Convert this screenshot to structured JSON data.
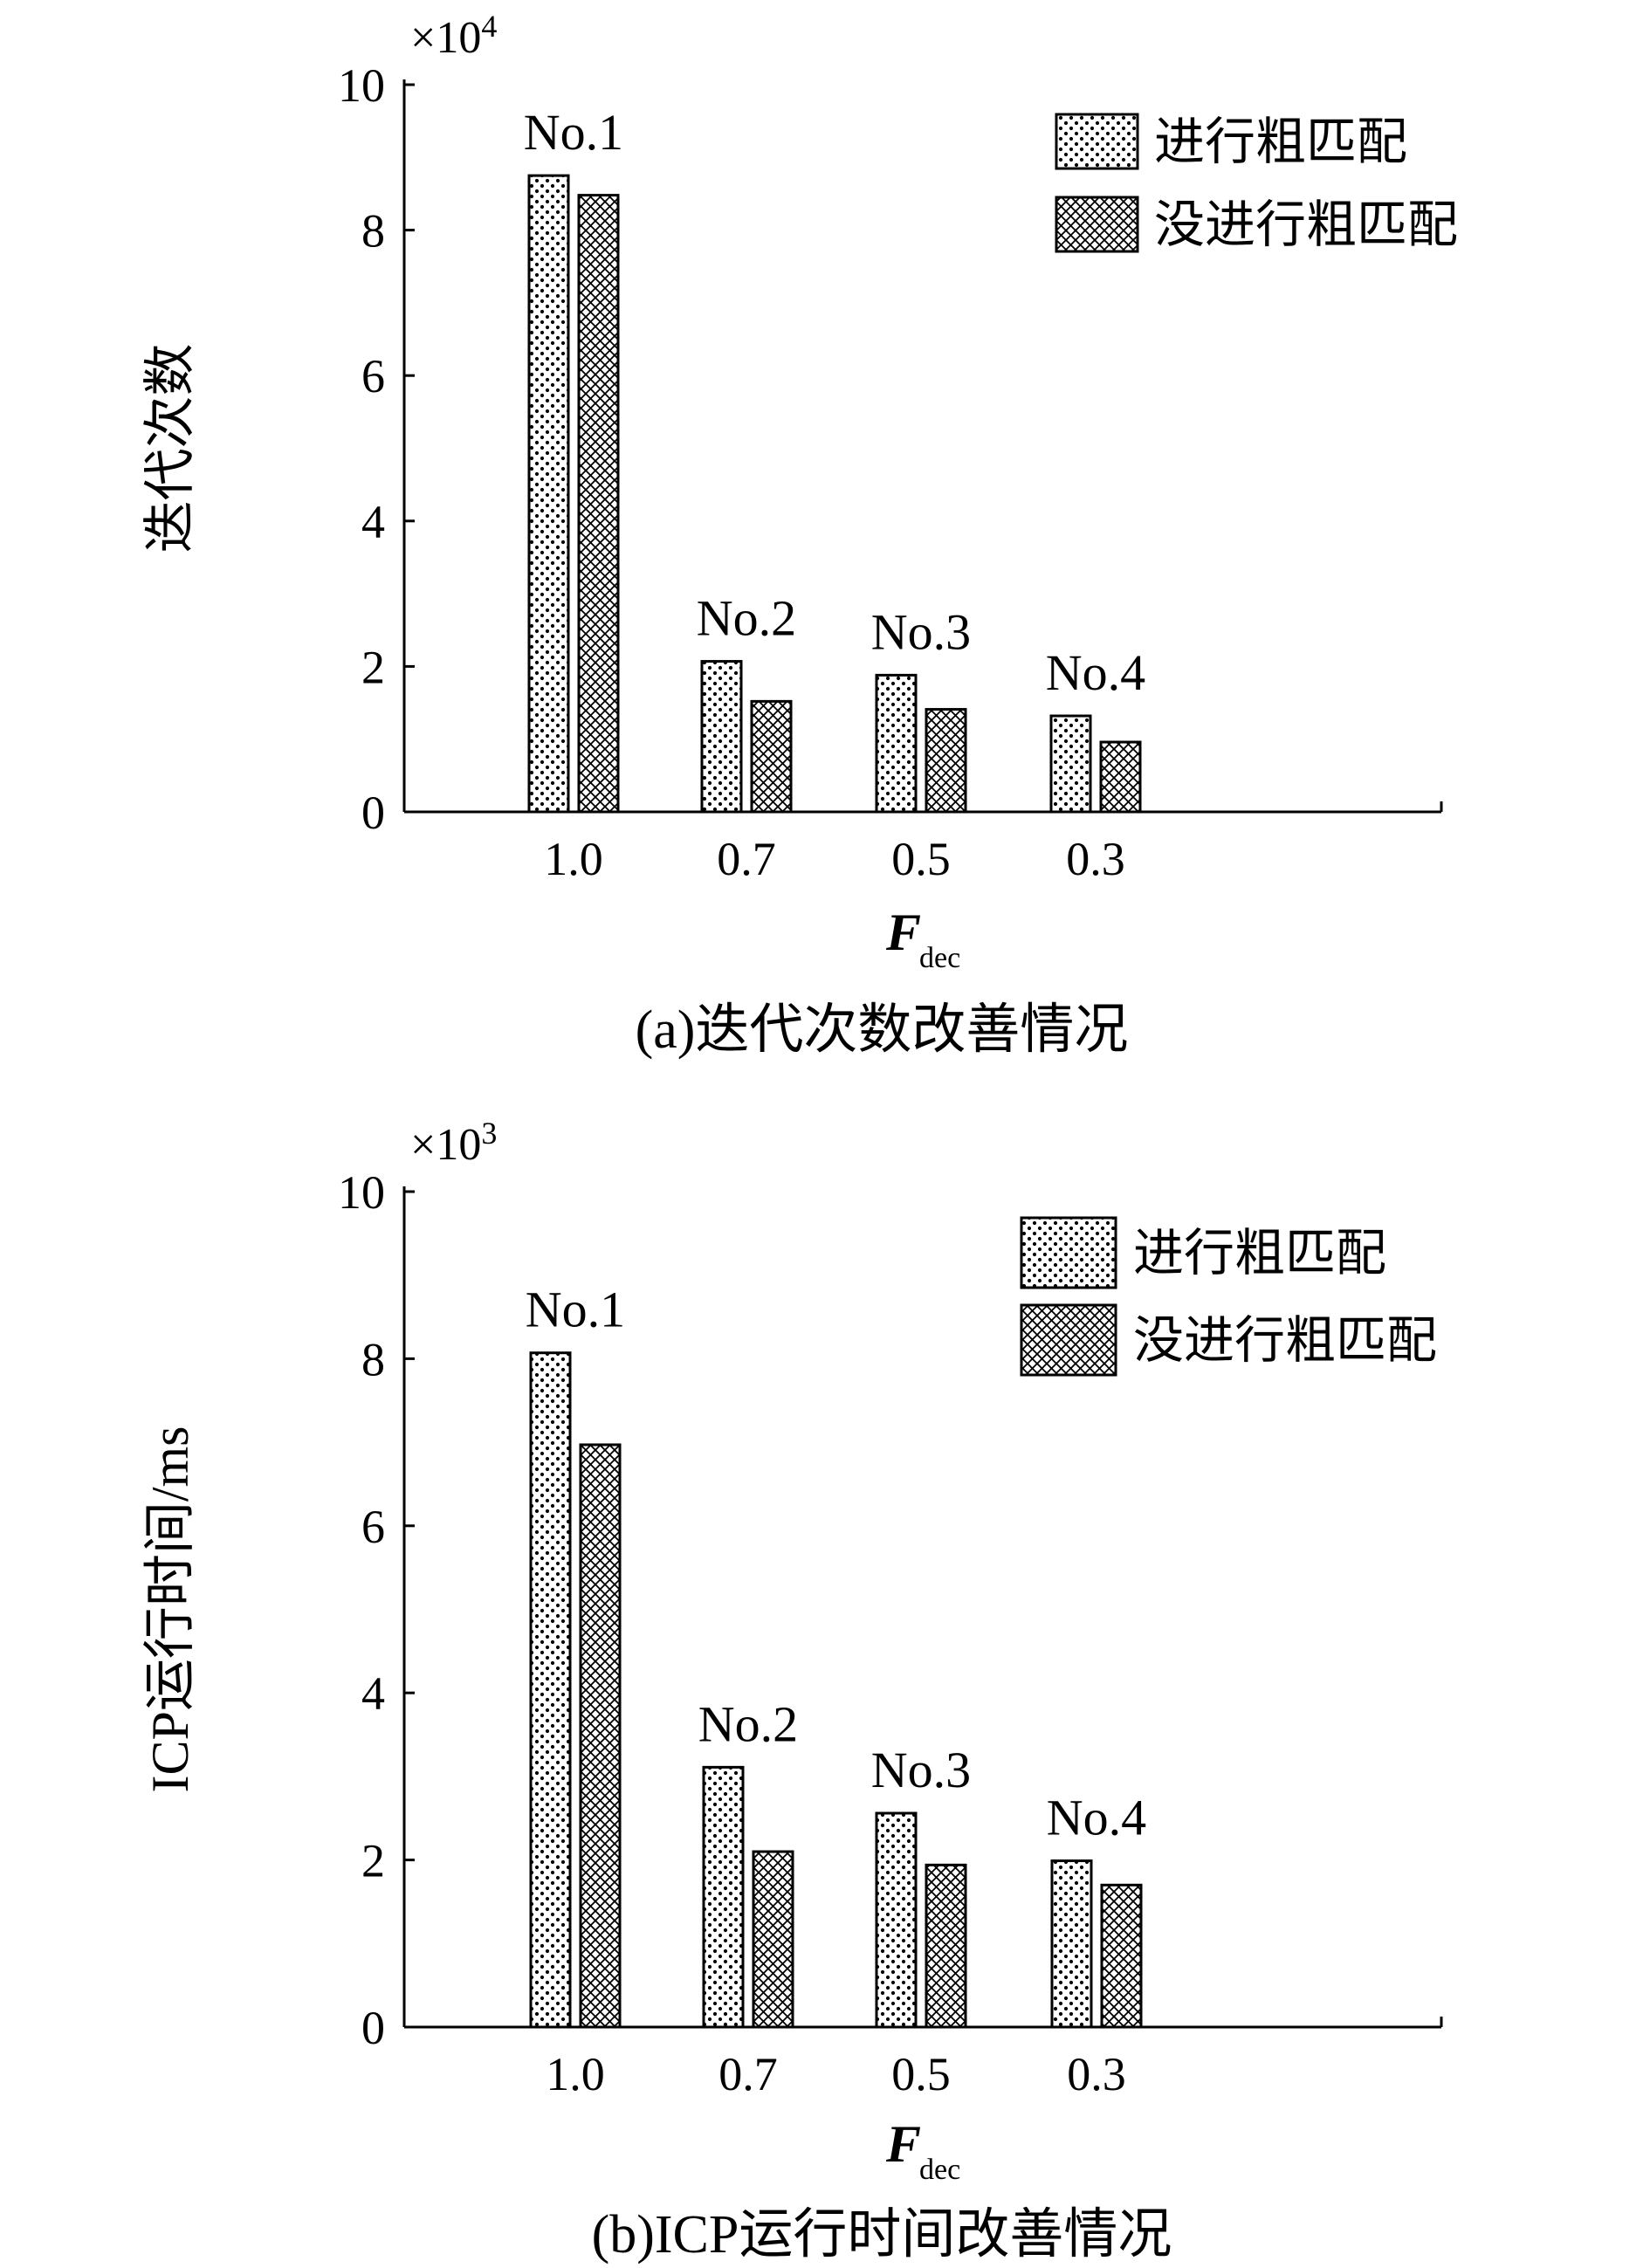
{
  "figure": {
    "colors": {
      "ink": "#000000",
      "background": "#ffffff"
    },
    "patterns": {
      "series_1": "dots",
      "series_2": "crosshatch"
    }
  },
  "chart_data": [
    {
      "type": "bar",
      "panel_caption": "(a)迭代次数改善情况",
      "ylabel": "迭代次数",
      "y_multiplier": "×10",
      "y_multiplier_exponent": "4",
      "xlabel_main": "F",
      "xlabel_sub": "dec",
      "categories": [
        "1.0",
        "0.7",
        "0.5",
        "0.3"
      ],
      "group_labels": [
        "No.1",
        "No.2",
        "No.3",
        "No.4"
      ],
      "ylim": [
        0,
        10
      ],
      "yticks": [
        "0",
        "2",
        "4",
        "6",
        "8",
        "10"
      ],
      "legend_position": "top-right",
      "series": [
        {
          "name": "进行粗匹配",
          "pattern": "dots",
          "values": [
            8.75,
            2.07,
            1.88,
            1.32
          ]
        },
        {
          "name": "没进行粗匹配",
          "pattern": "crosshatch",
          "values": [
            8.48,
            1.52,
            1.41,
            0.96
          ]
        }
      ]
    },
    {
      "type": "bar",
      "panel_caption": "(b)ICP运行时间改善情况",
      "ylabel": "ICP运行时间/ms",
      "y_multiplier": "×10",
      "y_multiplier_exponent": "3",
      "xlabel_main": "F",
      "xlabel_sub": "dec",
      "categories": [
        "1.0",
        "0.7",
        "0.5",
        "0.3"
      ],
      "group_labels": [
        "No.1",
        "No.2",
        "No.3",
        "No.4"
      ],
      "ylim": [
        0,
        10
      ],
      "yticks": [
        "0",
        "2",
        "4",
        "6",
        "8",
        "10"
      ],
      "legend_position": "top-right",
      "series": [
        {
          "name": "进行粗匹配",
          "pattern": "dots",
          "values": [
            8.07,
            3.11,
            2.56,
            1.99
          ]
        },
        {
          "name": "没进行粗匹配",
          "pattern": "crosshatch",
          "values": [
            6.97,
            2.1,
            1.94,
            1.7
          ]
        }
      ]
    }
  ]
}
